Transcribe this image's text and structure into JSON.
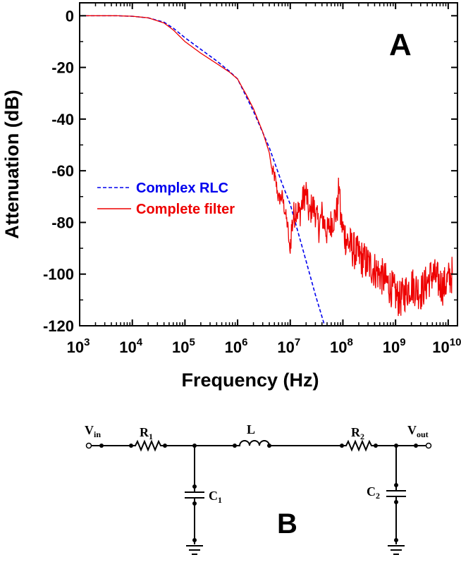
{
  "chart_data": {
    "type": "line",
    "panel_label": "A",
    "xlabel": "Frequency (Hz)",
    "ylabel": "Attenuation (dB)",
    "x_scale": "log",
    "xlim": [
      1000,
      15000000000
    ],
    "ylim": [
      -120,
      5
    ],
    "x_ticks": [
      {
        "value": 1000,
        "base": "10",
        "exp": "3"
      },
      {
        "value": 10000,
        "base": "10",
        "exp": "4"
      },
      {
        "value": 100000,
        "base": "10",
        "exp": "5"
      },
      {
        "value": 1000000,
        "base": "10",
        "exp": "6"
      },
      {
        "value": 10000000,
        "base": "10",
        "exp": "7"
      },
      {
        "value": 100000000,
        "base": "10",
        "exp": "8"
      },
      {
        "value": 1000000000,
        "base": "10",
        "exp": "9"
      },
      {
        "value": 10000000000,
        "base": "10",
        "exp": "10"
      }
    ],
    "y_ticks": [
      {
        "value": 0,
        "label": "0"
      },
      {
        "value": -20,
        "label": "-20"
      },
      {
        "value": -40,
        "label": "-40"
      },
      {
        "value": -60,
        "label": "-60"
      },
      {
        "value": -80,
        "label": "-80"
      },
      {
        "value": -100,
        "label": "-100"
      },
      {
        "value": -120,
        "label": "-120"
      }
    ],
    "grid": false,
    "legend_position": "center-left",
    "series": [
      {
        "name": "Complex RLC",
        "color": "#0000ee",
        "style": "dashed",
        "x": [
          1000,
          5000,
          10000,
          20000,
          40000,
          60000,
          100000,
          200000,
          400000,
          700000,
          1000000,
          2000000,
          4000000,
          7000000,
          10000000,
          20000000,
          30000000,
          45000000
        ],
        "y": [
          0,
          0,
          -0.2,
          -0.8,
          -2.5,
          -4.8,
          -8.5,
          -13,
          -17.5,
          -21.5,
          -24.5,
          -37,
          -51,
          -65,
          -73,
          -95,
          -108,
          -120
        ]
      },
      {
        "name": "Complete filter",
        "color": "#ee0000",
        "style": "solid",
        "x": [
          1000,
          5000,
          10000,
          20000,
          40000,
          60000,
          100000,
          200000,
          400000,
          700000,
          1000000,
          1500000,
          2000000,
          3000000,
          4000000,
          4500000,
          5000000,
          5500000,
          6000000,
          7000000,
          8000000,
          9000000,
          9800000,
          10500000,
          11500000,
          13000000,
          15000000,
          17000000,
          20000000,
          23000000,
          26000000,
          30000000,
          35000000,
          40000000,
          50000000,
          60000000,
          70000000,
          80000000,
          85000000,
          90000000,
          100000000,
          120000000,
          150000000,
          200000000,
          300000000,
          500000000,
          800000000,
          1200000000,
          2000000000,
          3000000000,
          5000000000,
          8000000000,
          12000000000
        ],
        "y": [
          0,
          0,
          -0.2,
          -0.8,
          -2.8,
          -5.5,
          -10,
          -14.5,
          -18.5,
          -21.8,
          -24.5,
          -31,
          -36,
          -45,
          -53,
          -60,
          -62,
          -66,
          -71,
          -70,
          -76,
          -82,
          -92,
          -83,
          -78,
          -74,
          -77,
          -72,
          -68,
          -78,
          -73,
          -76,
          -82,
          -77,
          -84,
          -80,
          -78,
          -74,
          -63,
          -78,
          -83,
          -87,
          -90,
          -93,
          -96,
          -100,
          -105,
          -110,
          -104,
          -107,
          -100,
          -105,
          -100
        ],
        "noise": true
      }
    ]
  },
  "circuit": {
    "panel_label": "B",
    "labels": {
      "vin_main": "V",
      "vin_sub": "in",
      "r1_main": "R",
      "r1_sub": "1",
      "l_main": "L",
      "r2_main": "R",
      "r2_sub": "2",
      "vout_main": "V",
      "vout_sub": "out",
      "c1_main": "C",
      "c1_sub": "1",
      "c2_main": "C",
      "c2_sub": "2"
    }
  }
}
